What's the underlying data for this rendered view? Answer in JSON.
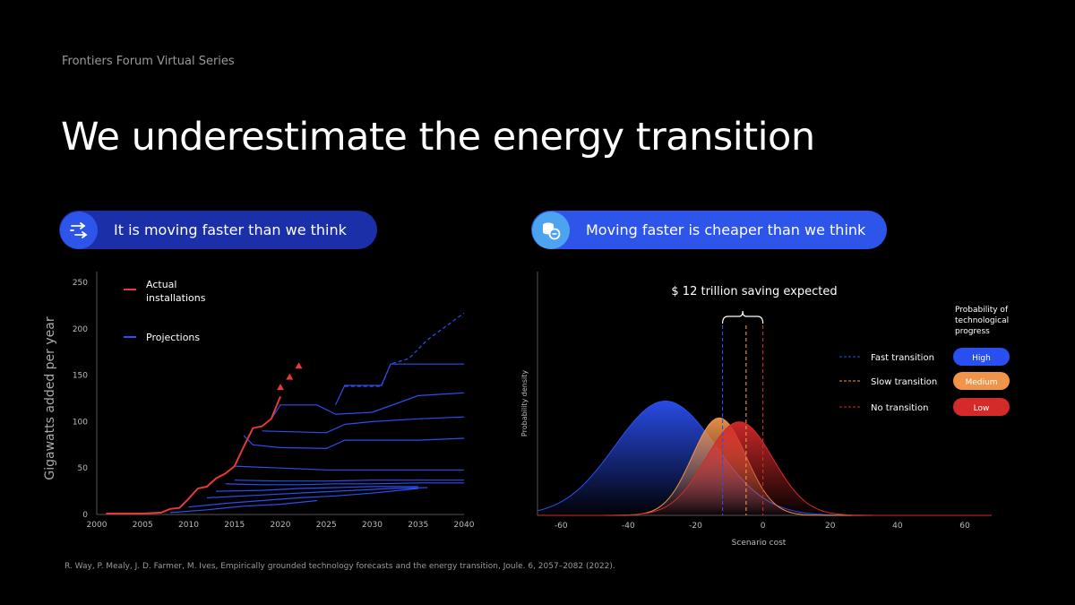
{
  "header": {
    "series_label": "Frontiers Forum Virtual Series",
    "title": "We underestimate the energy transition"
  },
  "pills": {
    "left": {
      "icon": "arrows-right-icon",
      "label": "It is moving faster than we think"
    },
    "right": {
      "icon": "coins-icon",
      "label": "Moving faster is cheaper than we think"
    }
  },
  "colors": {
    "actual": "#e8383d",
    "projection": "#2a4ff0",
    "fast": "#2a4ff0",
    "slow": "#f0944a",
    "none": "#d42a2a"
  },
  "chart_data": [
    {
      "type": "line",
      "ylabel": "Gigawatts added per year",
      "xlabel": "",
      "xlim": [
        2000,
        2040
      ],
      "ylim": [
        0,
        250
      ],
      "x_ticks": [
        2000,
        2005,
        2010,
        2015,
        2020,
        2025,
        2030,
        2035,
        2040
      ],
      "y_ticks": [
        0,
        50,
        100,
        150,
        200,
        250
      ],
      "legend": [
        {
          "name": "Actual installations",
          "color": "#e8383d"
        },
        {
          "name": "Projections",
          "color": "#2a4ff0"
        }
      ],
      "actual": {
        "x": [
          2001,
          2003,
          2005,
          2007,
          2008,
          2009,
          2010,
          2011,
          2012,
          2013,
          2014,
          2015,
          2016,
          2017,
          2018,
          2019,
          2020
        ],
        "y": [
          1,
          1,
          1,
          2,
          6,
          7,
          17,
          28,
          30,
          39,
          44,
          52,
          73,
          93,
          95,
          103,
          127
        ]
      },
      "actual_recent": {
        "x": [
          2020,
          2021,
          2022
        ],
        "y": [
          137,
          148,
          160
        ]
      },
      "projections": [
        {
          "x": [
            2008,
            2012,
            2016,
            2020,
            2024
          ],
          "y": [
            2,
            5,
            9,
            11,
            15
          ]
        },
        {
          "x": [
            2010,
            2014,
            2018,
            2022,
            2026,
            2030,
            2035
          ],
          "y": [
            8,
            12,
            15,
            18,
            20,
            23,
            28
          ]
        },
        {
          "x": [
            2012,
            2016,
            2020,
            2024,
            2028,
            2032,
            2036
          ],
          "y": [
            18,
            20,
            22,
            24,
            26,
            28,
            29
          ]
        },
        {
          "x": [
            2013,
            2018,
            2022,
            2026,
            2030,
            2035
          ],
          "y": [
            25,
            26,
            28,
            29,
            30,
            30
          ]
        },
        {
          "x": [
            2014,
            2018,
            2022,
            2026,
            2030,
            2035,
            2040
          ],
          "y": [
            33,
            32,
            32,
            33,
            33,
            34,
            34
          ]
        },
        {
          "x": [
            2015,
            2020,
            2025,
            2030,
            2035,
            2040
          ],
          "y": [
            37,
            36,
            36,
            37,
            37,
            37
          ]
        },
        {
          "x": [
            2015,
            2020,
            2025,
            2030,
            2035,
            2040
          ],
          "y": [
            52,
            50,
            48,
            48,
            48,
            48
          ]
        },
        {
          "x": [
            2016,
            2017,
            2020,
            2025,
            2027,
            2030,
            2035,
            2040
          ],
          "y": [
            85,
            75,
            72,
            71,
            80,
            80,
            80,
            82
          ]
        },
        {
          "x": [
            2018,
            2025,
            2027,
            2030,
            2035,
            2040
          ],
          "y": [
            90,
            88,
            97,
            100,
            103,
            105
          ]
        },
        {
          "x": [
            2019,
            2020,
            2024,
            2026,
            2030,
            2035,
            2040
          ],
          "y": [
            103,
            118,
            118,
            108,
            110,
            128,
            131
          ]
        },
        {
          "x": [
            2026,
            2027,
            2031,
            2032,
            2040
          ],
          "y": [
            118,
            139,
            139,
            162,
            162
          ]
        },
        {
          "x": [
            2027,
            2031,
            2032,
            2034,
            2036,
            2040
          ],
          "y": [
            138,
            138,
            162,
            168,
            188,
            217
          ],
          "dashed": true
        }
      ]
    },
    {
      "type": "area",
      "title": "$ 12 trillion saving expected",
      "xlabel": "Scenario cost",
      "ylabel": "Probability density",
      "xlim": [
        -67,
        68
      ],
      "x_ticks": [
        -60,
        -40,
        -20,
        0,
        20,
        40,
        60
      ],
      "series": [
        {
          "name": "Fast transition",
          "probability": "High",
          "mean": -29,
          "sd": 15,
          "peak": 0.88,
          "marker": -12,
          "color": "#2a4ff0"
        },
        {
          "name": "Slow transition",
          "probability": "Medium",
          "mean": -13,
          "sd": 8,
          "peak": 0.75,
          "marker": -5,
          "color": "#f0944a"
        },
        {
          "name": "No transition",
          "probability": "Low",
          "mean": -7,
          "sd": 10,
          "peak": 0.72,
          "marker": 0,
          "color": "#d42a2a"
        }
      ],
      "legend_title": "Probability of technological progress"
    }
  ],
  "citation": "R. Way, P. Mealy, J. D. Farmer, M. Ives, Empirically grounded technology forecasts and the energy transition, Joule. 6, 2057–2082 (2022)."
}
